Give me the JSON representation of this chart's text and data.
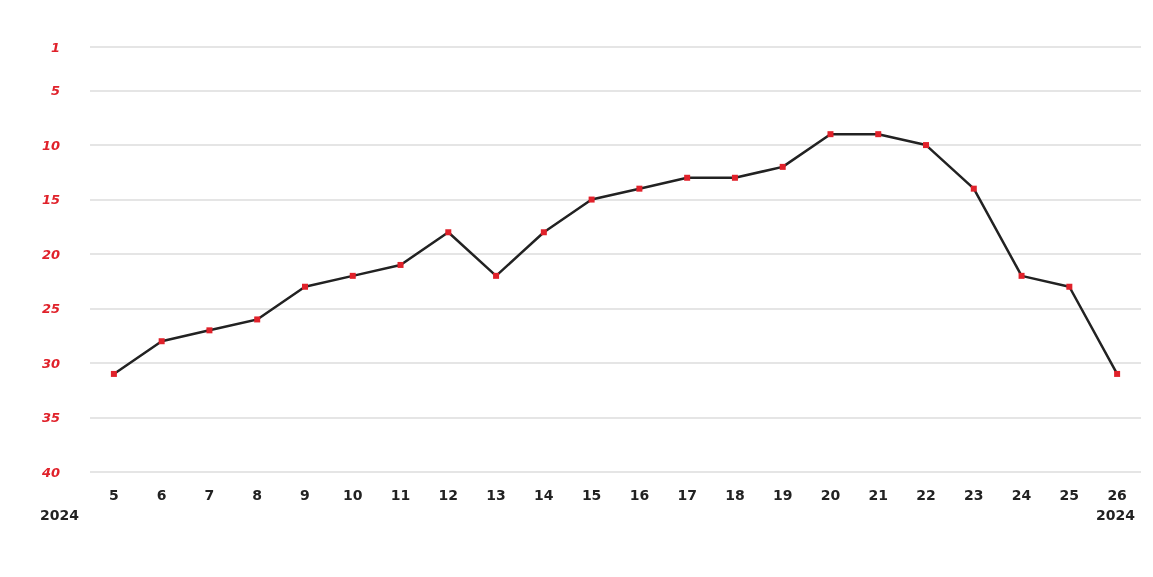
{
  "chart_data": {
    "type": "line",
    "categories": [
      "5",
      "6",
      "7",
      "8",
      "9",
      "10",
      "11",
      "12",
      "13",
      "14",
      "15",
      "16",
      "17",
      "18",
      "19",
      "20",
      "21",
      "22",
      "23",
      "24",
      "25",
      "26"
    ],
    "series": [
      {
        "color": "#222222",
        "colors": [
          "#e0212a",
          "#e0212a",
          "#e0212a",
          "#e0212a",
          "#e0212a",
          "#e0212a",
          "#e0212a",
          "#e0212a",
          "#e0212a",
          "#e0212a",
          "#e0212a",
          "#e0212a",
          "#e0212a",
          "#e0212a",
          "#e0212a",
          "#e0212a",
          "#e0212a",
          "#e0212a",
          "#e0212a",
          "#e0212a",
          "#e0212a",
          "#e0212a"
        ],
        "values": [
          31,
          28,
          27,
          26,
          23,
          22,
          21,
          18,
          22,
          18,
          15,
          14,
          13,
          13,
          12,
          9,
          9,
          10,
          14,
          22,
          23,
          31
        ]
      }
    ],
    "marker": "square",
    "line_style": "solid",
    "ylim": [
      40,
      1
    ],
    "yticks": [
      1,
      5,
      10,
      15,
      20,
      25,
      30,
      35,
      40
    ],
    "grid": "y",
    "annotations": [
      "2024",
      "2024"
    ]
  }
}
